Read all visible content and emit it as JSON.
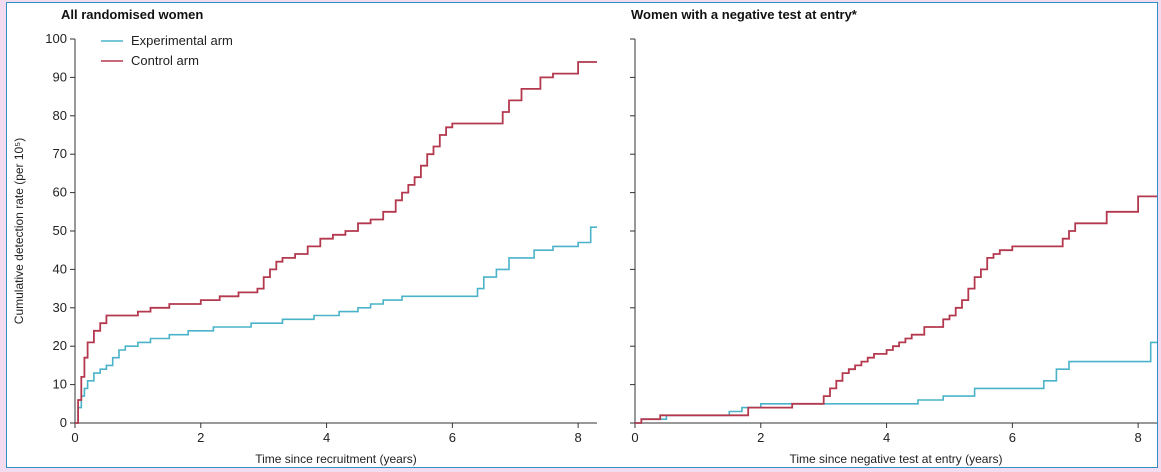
{
  "colors": {
    "experimental": "#4ab3c9",
    "control": "#b4394f",
    "axis": "#333333"
  },
  "chart_data": [
    {
      "type": "line",
      "title": "All randomised women",
      "xlabel": "Time since recruitment (years)",
      "ylabel": "Cumulative detection rate (per 10⁵)",
      "xlim": [
        0,
        8.3
      ],
      "ylim": [
        0,
        100
      ],
      "xticks": [
        0,
        2,
        4,
        6,
        8
      ],
      "yticks": [
        0,
        10,
        20,
        30,
        40,
        50,
        60,
        70,
        80,
        90,
        100
      ],
      "legend": {
        "position": "top-left",
        "entries": [
          "Experimental arm",
          "Control arm"
        ]
      },
      "series": [
        {
          "name": "Experimental arm",
          "color_key": "experimental",
          "x": [
            0,
            0.05,
            0.1,
            0.15,
            0.2,
            0.3,
            0.4,
            0.5,
            0.6,
            0.7,
            0.8,
            1.0,
            1.2,
            1.5,
            1.8,
            2.2,
            2.8,
            3.3,
            3.8,
            4.2,
            4.5,
            4.7,
            4.9,
            5.2,
            6.4,
            6.5,
            6.7,
            6.9,
            7.3,
            7.6,
            8.0,
            8.2,
            8.3
          ],
          "y": [
            0,
            4,
            7,
            9,
            11,
            13,
            14,
            15,
            17,
            19,
            20,
            21,
            22,
            23,
            24,
            25,
            26,
            27,
            28,
            29,
            30,
            31,
            32,
            33,
            35,
            38,
            40,
            43,
            45,
            46,
            47,
            51,
            51
          ]
        },
        {
          "name": "Control arm",
          "color_key": "control",
          "x": [
            0,
            0.05,
            0.1,
            0.15,
            0.2,
            0.3,
            0.4,
            0.5,
            1.0,
            1.2,
            1.5,
            2.0,
            2.3,
            2.6,
            2.9,
            3.0,
            3.1,
            3.2,
            3.3,
            3.5,
            3.7,
            3.9,
            4.1,
            4.3,
            4.5,
            4.7,
            4.9,
            5.1,
            5.2,
            5.3,
            5.4,
            5.5,
            5.6,
            5.7,
            5.8,
            5.9,
            6.0,
            6.2,
            6.8,
            6.9,
            7.1,
            7.4,
            7.6,
            8.0,
            8.3
          ],
          "y": [
            0,
            6,
            12,
            17,
            21,
            24,
            26,
            28,
            29,
            30,
            31,
            32,
            33,
            34,
            35,
            38,
            40,
            42,
            43,
            44,
            46,
            48,
            49,
            50,
            52,
            53,
            55,
            58,
            60,
            62,
            64,
            67,
            70,
            72,
            75,
            77,
            78,
            78,
            81,
            84,
            87,
            90,
            91,
            94,
            94
          ]
        }
      ]
    },
    {
      "type": "line",
      "title": "Women with a negative test at entry*",
      "xlabel": "Time since negative test at entry (years)",
      "ylabel": "",
      "xlim": [
        0,
        8.3
      ],
      "ylim": [
        0,
        100
      ],
      "xticks": [
        0,
        2,
        4,
        6,
        8
      ],
      "yticks": [
        0,
        10,
        20,
        30,
        40,
        50,
        60,
        70,
        80,
        90,
        100
      ],
      "series": [
        {
          "name": "Experimental arm",
          "color_key": "experimental",
          "x": [
            0,
            0.1,
            0.5,
            1.5,
            1.7,
            2.0,
            2.8,
            4.5,
            4.9,
            5.4,
            6.5,
            6.7,
            6.9,
            8.2,
            8.3
          ],
          "y": [
            0,
            1,
            2,
            3,
            4,
            5,
            5,
            6,
            7,
            9,
            11,
            14,
            16,
            21,
            21
          ]
        },
        {
          "name": "Control arm",
          "color_key": "control",
          "x": [
            0,
            0.1,
            0.4,
            1.5,
            1.8,
            2.0,
            2.5,
            2.9,
            3.0,
            3.1,
            3.2,
            3.3,
            3.4,
            3.5,
            3.6,
            3.7,
            3.8,
            4.0,
            4.1,
            4.2,
            4.3,
            4.4,
            4.6,
            4.9,
            5.0,
            5.1,
            5.2,
            5.3,
            5.4,
            5.5,
            5.6,
            5.7,
            5.8,
            6.0,
            6.8,
            6.9,
            7.0,
            7.5,
            8.0,
            8.3
          ],
          "y": [
            0,
            1,
            2,
            2,
            4,
            4,
            5,
            5,
            7,
            9,
            11,
            13,
            14,
            15,
            16,
            17,
            18,
            19,
            20,
            21,
            22,
            23,
            25,
            27,
            28,
            30,
            32,
            35,
            38,
            40,
            43,
            44,
            45,
            46,
            48,
            50,
            52,
            55,
            59,
            59
          ]
        }
      ]
    }
  ]
}
